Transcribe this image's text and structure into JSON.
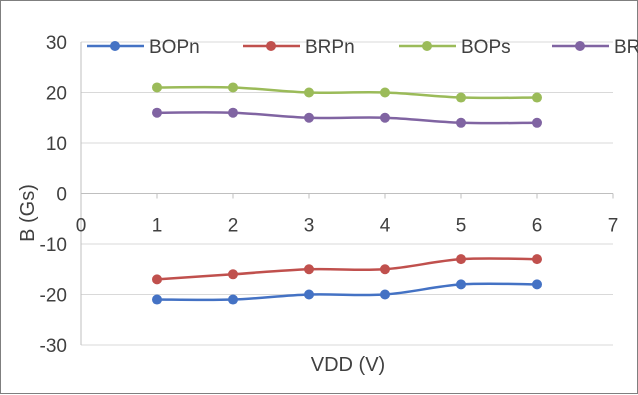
{
  "chart_data": {
    "type": "line",
    "xlabel": "VDD (V)",
    "ylabel": "B (Gs)",
    "xlim": [
      0,
      7
    ],
    "ylim": [
      -30,
      30
    ],
    "x_ticks": [
      0,
      1,
      2,
      3,
      4,
      5,
      6,
      7
    ],
    "y_ticks": [
      30,
      20,
      10,
      0,
      -10,
      -20,
      -30
    ],
    "grid": "horizontal",
    "legend_position": "top",
    "x": [
      1,
      2,
      3,
      4,
      5,
      6
    ],
    "series": [
      {
        "name": "BOPn",
        "color": "#4472c4",
        "values": [
          -21,
          -21,
          -20,
          -20,
          -18,
          -18
        ]
      },
      {
        "name": "BRPn",
        "color": "#c0504d",
        "values": [
          -17,
          -16,
          -15,
          -15,
          -13,
          -13
        ]
      },
      {
        "name": "BOPs",
        "color": "#9bbb59",
        "values": [
          21,
          21,
          20,
          20,
          19,
          19
        ]
      },
      {
        "name": "BRPs",
        "color": "#8064a2",
        "values": [
          16,
          16,
          15,
          15,
          14,
          14
        ]
      }
    ]
  }
}
